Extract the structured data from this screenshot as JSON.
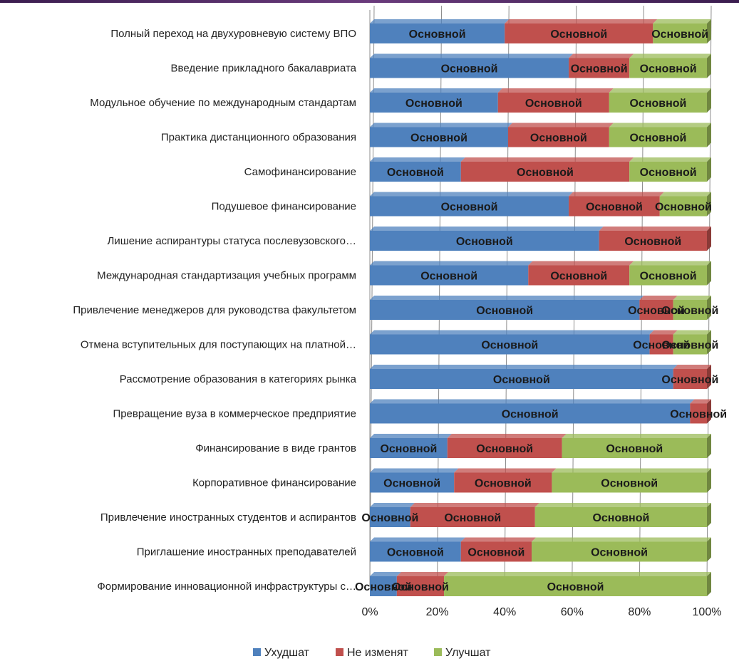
{
  "chart_data": {
    "type": "bar",
    "orientation": "horizontal",
    "stacked": "percent",
    "categories": [
      "Полный переход на двухуровневую систему ВПО",
      "Введение прикладного бакалавриата",
      "Модульное обучение по международным стандартам",
      "Практика дистанционного образования",
      "Самофинансирование",
      "Подушевое финансирование",
      "Лишение аспирантуры статуса послевузовского…",
      "Международная стандартизация учебных программ",
      "Привлечение менеджеров для руководства факультетом",
      "Отмена вступительных для поступающих на платной…",
      "Рассмотрение образования в категориях рынка",
      "Превращение вуза в коммерческое предприятие",
      "Финансирование в виде грантов",
      "Корпоративное финансирование",
      "Привлечение иностранных студентов и аспирантов",
      "Приглашение иностранных преподавателей",
      "Формирование инновационной инфраструктуры с…"
    ],
    "series": [
      {
        "name": "Ухудшат",
        "color": "#4f81bd",
        "values": [
          40,
          59,
          38,
          41,
          27,
          59,
          68,
          47,
          80,
          83,
          90,
          95,
          23,
          25,
          12,
          27,
          8
        ]
      },
      {
        "name": "Не изменят",
        "color": "#c0504d",
        "values": [
          44,
          18,
          33,
          30,
          50,
          27,
          32,
          30,
          10,
          7,
          10,
          5,
          34,
          29,
          37,
          21,
          14
        ]
      },
      {
        "name": "Улучшат",
        "color": "#9bbb59",
        "values": [
          16,
          23,
          29,
          29,
          23,
          14,
          0,
          23,
          10,
          10,
          0,
          0,
          43,
          46,
          51,
          52,
          78
        ]
      }
    ],
    "data_label_text": "Основной",
    "x_ticks": [
      "0%",
      "20%",
      "40%",
      "60%",
      "80%",
      "100%"
    ],
    "xlim": [
      0,
      100
    ],
    "grid": true,
    "legend_position": "bottom",
    "title": "",
    "xlabel": "",
    "ylabel": ""
  }
}
